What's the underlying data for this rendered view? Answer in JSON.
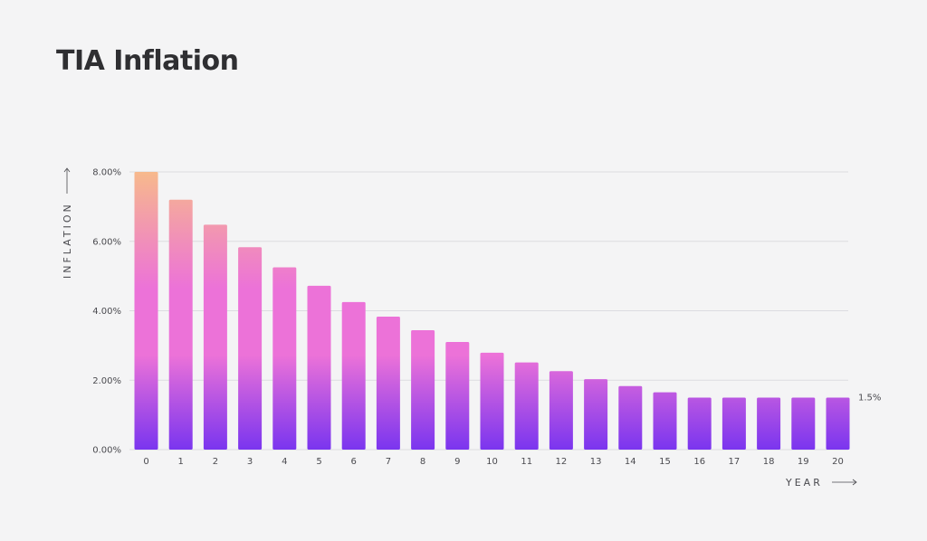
{
  "title": "TIA Inflation",
  "chart_data": {
    "type": "bar",
    "title": "TIA Inflation",
    "xlabel": "YEAR",
    "ylabel": "INFLATION",
    "categories": [
      "0",
      "1",
      "2",
      "3",
      "4",
      "5",
      "6",
      "7",
      "8",
      "9",
      "10",
      "11",
      "12",
      "13",
      "14",
      "15",
      "16",
      "17",
      "18",
      "19",
      "20"
    ],
    "values": [
      8.0,
      7.2,
      6.48,
      5.83,
      5.25,
      4.72,
      4.25,
      3.83,
      3.44,
      3.1,
      2.79,
      2.51,
      2.26,
      2.03,
      1.83,
      1.65,
      1.5,
      1.5,
      1.5,
      1.5,
      1.5
    ],
    "ylim": [
      0,
      8
    ],
    "yticks": [
      0,
      2,
      4,
      6,
      8
    ],
    "ytick_labels": [
      "0.00%",
      "2.00%",
      "4.00%",
      "6.00%",
      "8.00%"
    ],
    "grid": true,
    "annotation": {
      "text": "1.5%",
      "value": 1.5
    },
    "colors": {
      "bar_top": "#f7b98c",
      "bar_mid": "#ec72d8",
      "bar_bottom": "#7a35ef",
      "grid": "#dcdce0",
      "text": "#4a4a4f"
    }
  }
}
